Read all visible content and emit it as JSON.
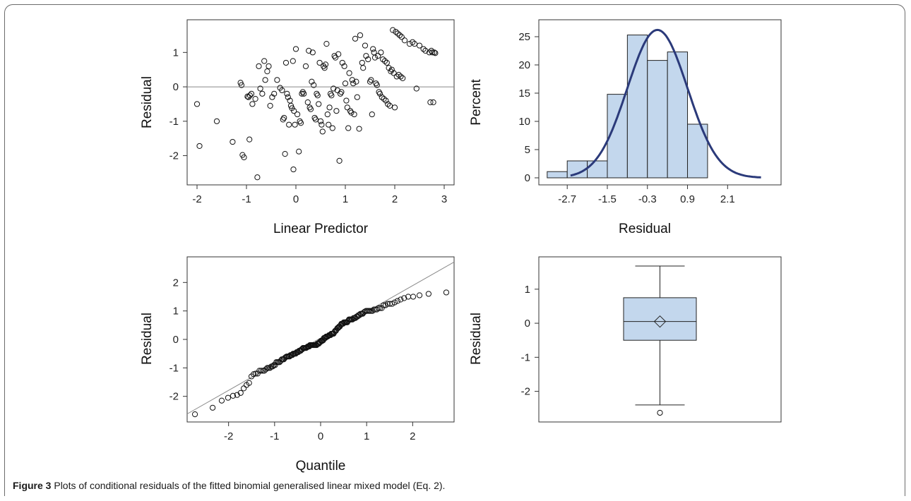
{
  "caption": {
    "label": "Figure 3",
    "text": " Plots of conditional residuals of the fitted binomial generalised linear mixed model (Eq. 2)."
  },
  "colors": {
    "curve": "#2b3a7a",
    "box_fill": "#c3d7ed",
    "marker": "#111111",
    "refline": "#888888"
  },
  "chart_data": [
    {
      "type": "scatter",
      "xlabel": "Linear Predictor",
      "ylabel": "Residual",
      "xlim": [
        -2.2,
        3.2
      ],
      "ylim": [
        -2.85,
        1.95
      ],
      "xticks": [
        "-2",
        "-1",
        "0",
        "1",
        "2",
        "3"
      ],
      "yticks": [
        "-2",
        "-1",
        "0",
        "1"
      ],
      "reference_line_y": 0,
      "points": [
        [
          -2.0,
          -0.5
        ],
        [
          -1.95,
          -1.72
        ],
        [
          -1.6,
          -1.0
        ],
        [
          -1.28,
          -1.6
        ],
        [
          -1.12,
          0.12
        ],
        [
          -1.1,
          0.05
        ],
        [
          -1.08,
          -1.98
        ],
        [
          -1.05,
          -2.05
        ],
        [
          -0.98,
          -0.28
        ],
        [
          -0.96,
          -0.3
        ],
        [
          -0.94,
          -1.53
        ],
        [
          -0.93,
          -0.25
        ],
        [
          -0.9,
          -0.2
        ],
        [
          -0.88,
          -0.5
        ],
        [
          -0.82,
          -0.35
        ],
        [
          -0.78,
          -2.63
        ],
        [
          -0.75,
          0.6
        ],
        [
          -0.72,
          -0.05
        ],
        [
          -0.68,
          -0.2
        ],
        [
          -0.64,
          0.75
        ],
        [
          -0.62,
          0.2
        ],
        [
          -0.58,
          0.45
        ],
        [
          -0.55,
          0.6
        ],
        [
          -0.52,
          -0.55
        ],
        [
          -0.48,
          -0.3
        ],
        [
          -0.44,
          -0.2
        ],
        [
          -0.38,
          0.2
        ],
        [
          -0.32,
          -0.03
        ],
        [
          -0.28,
          -0.1
        ],
        [
          -0.26,
          -0.95
        ],
        [
          -0.24,
          -0.9
        ],
        [
          -0.22,
          -1.95
        ],
        [
          -0.2,
          0.7
        ],
        [
          -0.18,
          -0.2
        ],
        [
          -0.16,
          -0.3
        ],
        [
          -0.14,
          -1.1
        ],
        [
          -0.12,
          -0.4
        ],
        [
          -0.1,
          -0.55
        ],
        [
          -0.08,
          -0.62
        ],
        [
          -0.06,
          0.75
        ],
        [
          -0.05,
          -2.4
        ],
        [
          -0.04,
          -0.7
        ],
        [
          -0.02,
          -1.1
        ],
        [
          0.0,
          1.1
        ],
        [
          0.03,
          -0.8
        ],
        [
          0.06,
          -1.88
        ],
        [
          0.08,
          -1.0
        ],
        [
          0.1,
          -1.05
        ],
        [
          0.12,
          -0.2
        ],
        [
          0.14,
          -0.15
        ],
        [
          0.16,
          -0.2
        ],
        [
          0.2,
          0.6
        ],
        [
          0.24,
          -0.45
        ],
        [
          0.26,
          1.05
        ],
        [
          0.28,
          -0.6
        ],
        [
          0.3,
          -0.65
        ],
        [
          0.32,
          0.15
        ],
        [
          0.34,
          1.0
        ],
        [
          0.36,
          0.05
        ],
        [
          0.38,
          -0.9
        ],
        [
          0.4,
          -0.95
        ],
        [
          0.42,
          -0.2
        ],
        [
          0.44,
          -0.25
        ],
        [
          0.46,
          -0.5
        ],
        [
          0.48,
          0.7
        ],
        [
          0.5,
          -1.0
        ],
        [
          0.52,
          -1.1
        ],
        [
          0.54,
          -1.3
        ],
        [
          0.56,
          0.6
        ],
        [
          0.58,
          0.55
        ],
        [
          0.6,
          0.65
        ],
        [
          0.62,
          1.25
        ],
        [
          0.64,
          -0.8
        ],
        [
          0.66,
          -1.1
        ],
        [
          0.68,
          -0.6
        ],
        [
          0.7,
          -0.2
        ],
        [
          0.72,
          -0.25
        ],
        [
          0.74,
          -1.2
        ],
        [
          0.76,
          -0.05
        ],
        [
          0.78,
          0.9
        ],
        [
          0.8,
          0.85
        ],
        [
          0.82,
          -0.7
        ],
        [
          0.84,
          -0.1
        ],
        [
          0.86,
          0.95
        ],
        [
          0.88,
          -2.15
        ],
        [
          0.9,
          -0.2
        ],
        [
          0.92,
          -0.15
        ],
        [
          0.94,
          0.7
        ],
        [
          0.98,
          0.6
        ],
        [
          1.0,
          0.1
        ],
        [
          1.02,
          -0.4
        ],
        [
          1.04,
          -0.6
        ],
        [
          1.06,
          -1.2
        ],
        [
          1.08,
          0.4
        ],
        [
          1.1,
          -0.7
        ],
        [
          1.12,
          -0.75
        ],
        [
          1.14,
          0.2
        ],
        [
          1.16,
          0.1
        ],
        [
          1.18,
          -0.8
        ],
        [
          1.2,
          1.4
        ],
        [
          1.22,
          0.15
        ],
        [
          1.24,
          -0.3
        ],
        [
          1.28,
          -1.22
        ],
        [
          1.3,
          1.5
        ],
        [
          1.34,
          0.7
        ],
        [
          1.36,
          0.55
        ],
        [
          1.4,
          1.2
        ],
        [
          1.42,
          0.9
        ],
        [
          1.46,
          0.8
        ],
        [
          1.5,
          0.15
        ],
        [
          1.52,
          0.2
        ],
        [
          1.54,
          -0.8
        ],
        [
          1.56,
          1.1
        ],
        [
          1.58,
          1.0
        ],
        [
          1.6,
          0.85
        ],
        [
          1.62,
          0.1
        ],
        [
          1.64,
          0.05
        ],
        [
          1.66,
          0.9
        ],
        [
          1.68,
          -0.15
        ],
        [
          1.7,
          -0.2
        ],
        [
          1.72,
          1.0
        ],
        [
          1.74,
          -0.3
        ],
        [
          1.76,
          0.8
        ],
        [
          1.78,
          -0.35
        ],
        [
          1.8,
          0.75
        ],
        [
          1.82,
          -0.4
        ],
        [
          1.84,
          0.7
        ],
        [
          1.86,
          -0.5
        ],
        [
          1.88,
          0.55
        ],
        [
          1.9,
          -0.55
        ],
        [
          1.92,
          0.45
        ],
        [
          1.94,
          0.5
        ],
        [
          1.96,
          1.65
        ],
        [
          1.98,
          0.4
        ],
        [
          2.0,
          -0.6
        ],
        [
          2.02,
          1.6
        ],
        [
          2.04,
          0.3
        ],
        [
          2.06,
          1.55
        ],
        [
          2.08,
          0.35
        ],
        [
          2.1,
          1.5
        ],
        [
          2.12,
          0.3
        ],
        [
          2.14,
          1.45
        ],
        [
          2.16,
          0.25
        ],
        [
          2.2,
          1.35
        ],
        [
          2.3,
          1.25
        ],
        [
          2.36,
          1.3
        ],
        [
          2.4,
          1.25
        ],
        [
          2.44,
          -0.05
        ],
        [
          2.5,
          1.2
        ],
        [
          2.58,
          1.1
        ],
        [
          2.62,
          1.05
        ],
        [
          2.7,
          1.0
        ],
        [
          2.72,
          -0.45
        ],
        [
          2.74,
          1.05
        ],
        [
          2.76,
          1.0
        ],
        [
          2.78,
          -0.45
        ],
        [
          2.8,
          1.0
        ],
        [
          2.82,
          0.98
        ]
      ]
    },
    {
      "type": "bar",
      "xlabel": "Residual",
      "ylabel": "Percent",
      "xticks": [
        "-2.7",
        "-1.5",
        "-0.3",
        "0.9",
        "2.1"
      ],
      "yticks": [
        "0",
        "5",
        "10",
        "15",
        "20",
        "25"
      ],
      "ylim": [
        0,
        28
      ],
      "bin_width": 0.6,
      "bin_lefts": [
        -3.3,
        -2.7,
        -2.1,
        -1.5,
        -0.9,
        -0.3,
        0.3,
        0.9,
        1.5
      ],
      "values": [
        1.1,
        3.0,
        3.0,
        14.8,
        25.3,
        20.8,
        22.3,
        9.5,
        0
      ],
      "curve": {
        "type": "normal",
        "mean": 0.0,
        "sd": 0.9,
        "xmin": -2.6,
        "xmax": 3.1
      }
    },
    {
      "type": "scatter",
      "xlabel": "Quantile",
      "ylabel": "Residual",
      "xlim": [
        -2.9,
        2.9
      ],
      "ylim": [
        -2.9,
        2.9
      ],
      "xticks": [
        "-2",
        "-1",
        "0",
        "1",
        "2"
      ],
      "yticks": [
        "-2",
        "-1",
        "0",
        "1",
        "2"
      ],
      "reference_line": {
        "intercept": 0.05,
        "slope": 0.92
      }
    },
    {
      "type": "box",
      "ylabel": "Residual",
      "ylim": [
        -2.9,
        1.95
      ],
      "yticks": [
        "-2",
        "-1",
        "0",
        "1"
      ],
      "whisker_low": -2.4,
      "q1": -0.5,
      "median": 0.05,
      "mean": 0.05,
      "q3": 0.75,
      "whisker_high": 1.68,
      "outliers": [
        -2.63
      ]
    }
  ]
}
